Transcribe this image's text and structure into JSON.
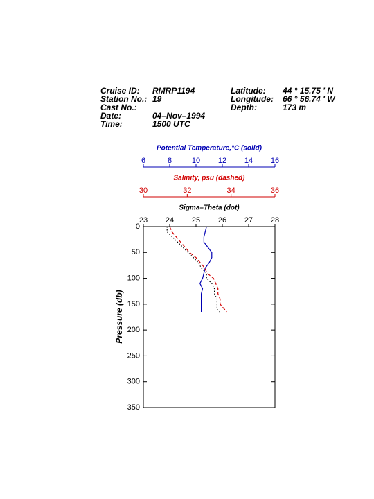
{
  "header": {
    "left": [
      {
        "label": "Cruise ID:",
        "value": "RMRP1194"
      },
      {
        "label": "Station No.:",
        "value": "19"
      },
      {
        "label": "Cast No.:"
      },
      {
        "label": "Date:",
        "value": "04–Nov–1994"
      },
      {
        "label": "Time:",
        "value": "1500 UTC"
      }
    ],
    "right": [
      {
        "label": "Latitude:",
        "value": "44 ° 15.75 ' N"
      },
      {
        "label": "Longitude:",
        "value": "66 ° 56.74 ' W"
      },
      {
        "label": "Depth:",
        "value": "173 m"
      }
    ]
  },
  "chart_data": {
    "type": "line",
    "y_label": "Pressure (db)",
    "ylim": [
      0,
      350
    ],
    "yticks": [
      0,
      50,
      100,
      150,
      200,
      250,
      300,
      350
    ],
    "pressure": [
      0,
      10,
      20,
      30,
      40,
      50,
      60,
      70,
      80,
      90,
      100,
      110,
      120,
      130,
      140,
      150,
      160,
      165
    ],
    "x_axes": [
      {
        "label": "Potential Temperature,°C (solid)",
        "color": "#0000b4",
        "dash": "solid",
        "xlim": [
          6,
          16
        ],
        "xticks": [
          6,
          8,
          10,
          12,
          14,
          16
        ],
        "values": [
          10.8,
          10.7,
          10.6,
          10.6,
          10.9,
          11.2,
          11.2,
          11.0,
          10.7,
          10.6,
          10.5,
          10.3,
          10.5,
          10.4,
          10.4,
          10.4,
          10.4,
          10.4
        ]
      },
      {
        "label": "Salinity, psu  (dashed)",
        "color": "#d20000",
        "dash": "dashed",
        "xlim": [
          30,
          36
        ],
        "xticks": [
          30,
          32,
          34,
          36
        ],
        "values": [
          31.2,
          31.3,
          31.5,
          31.7,
          31.9,
          32.1,
          32.4,
          32.6,
          32.8,
          32.9,
          33.2,
          33.3,
          33.4,
          33.4,
          33.5,
          33.5,
          33.7,
          33.8
        ]
      },
      {
        "label": "Sigma–Theta (dot)",
        "color": "#000000",
        "dash": "dotted",
        "xlim": [
          23,
          28
        ],
        "xticks": [
          23,
          24,
          25,
          26,
          27,
          28
        ],
        "values": [
          23.9,
          23.9,
          24.1,
          24.3,
          24.5,
          24.7,
          24.9,
          25.1,
          25.2,
          25.4,
          25.4,
          25.6,
          25.7,
          25.7,
          25.8,
          25.8,
          25.8,
          25.9
        ]
      }
    ]
  }
}
